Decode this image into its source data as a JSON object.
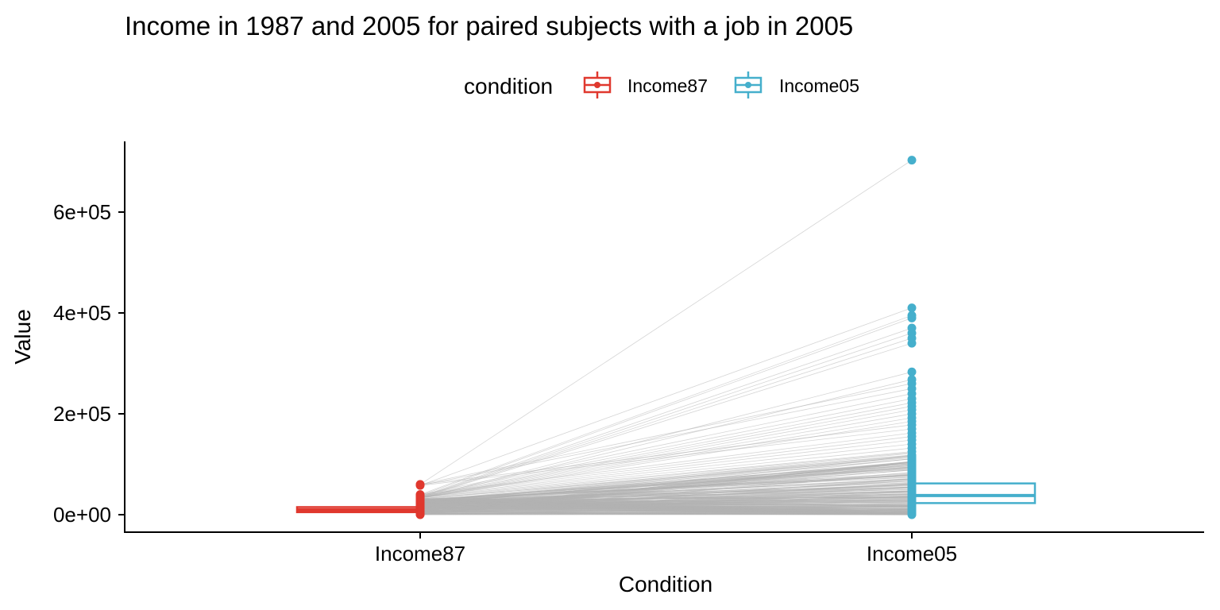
{
  "chart_data": {
    "type": "paired-box",
    "title": "Income in 1987 and 2005 for paired subjects with a job in 2005",
    "xlabel": "Condition",
    "ylabel": "Value",
    "categories": [
      "Income87",
      "Income05"
    ],
    "ylim": [
      -30000,
      740000
    ],
    "yticks": [
      0,
      200000,
      400000,
      600000
    ],
    "ytick_labels": [
      "0e+00",
      "2e+05",
      "4e+05",
      "6e+05"
    ],
    "legend": {
      "title": "condition",
      "position": "top",
      "entries": [
        "Income87",
        "Income05"
      ]
    },
    "colors": {
      "Income87": "#E0382E",
      "Income05": "#45AFCC",
      "pair_lines": "#B3B3B3"
    },
    "series": [
      {
        "name": "Income87",
        "box": {
          "min": 0,
          "q1": 5000,
          "median": 9500,
          "q3": 15000,
          "max": 32000
        },
        "outliers": [
          60000,
          58000,
          40000,
          38000,
          36000,
          35000,
          34000,
          33500,
          33000,
          32500
        ]
      },
      {
        "name": "Income05",
        "box": {
          "min": 0,
          "q1": 23000,
          "median": 38000,
          "q3": 62000,
          "max": 118000
        },
        "outliers": [
          703000,
          410000,
          395000,
          390000,
          370000,
          360000,
          350000,
          340000,
          283000,
          268000,
          260000,
          250000,
          240000,
          230000,
          222000,
          215000,
          208000,
          200000,
          192000,
          185000,
          178000,
          170000,
          162000,
          155000,
          148000,
          140000,
          132000,
          125000
        ]
      }
    ]
  }
}
